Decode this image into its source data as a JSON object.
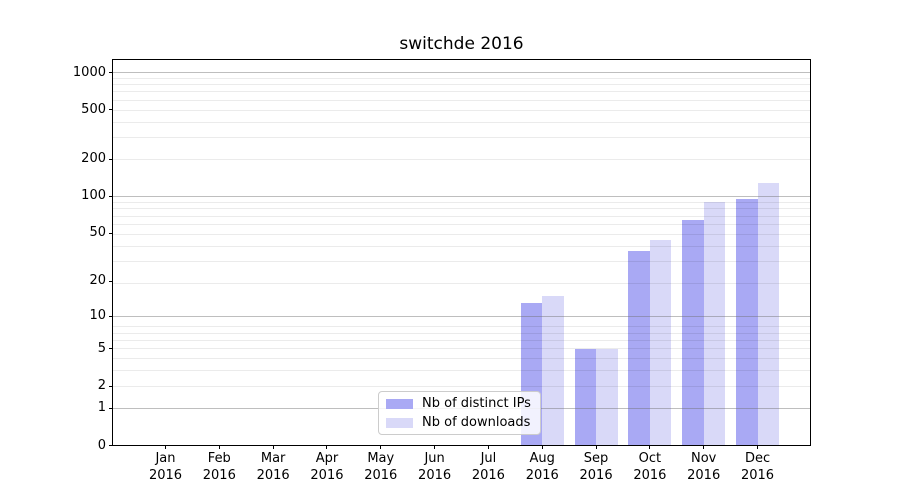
{
  "chart_data": {
    "type": "bar",
    "title": "switchde 2016",
    "yscale": "log1p",
    "grid": true,
    "legend_position": "lower center",
    "x_tick_year": "2016",
    "months": [
      "Jan",
      "Feb",
      "Mar",
      "Apr",
      "May",
      "Jun",
      "Jul",
      "Aug",
      "Sep",
      "Oct",
      "Nov",
      "Dec"
    ],
    "categories": [
      "Jan 2016",
      "Feb 2016",
      "Mar 2016",
      "Apr 2016",
      "May 2016",
      "Jun 2016",
      "Jul 2016",
      "Aug 2016",
      "Sep 2016",
      "Oct 2016",
      "Nov 2016",
      "Dec 2016"
    ],
    "yticks": [
      0,
      1,
      2,
      5,
      10,
      20,
      50,
      100,
      200,
      500,
      1000
    ],
    "ylim": [
      0,
      1300
    ],
    "series": [
      {
        "name": "Nb of distinct IPs",
        "color": "#a9a9f4",
        "values": [
          0,
          0,
          0,
          0,
          0,
          0,
          0,
          13,
          5,
          36,
          64,
          95
        ]
      },
      {
        "name": "Nb of downloads",
        "color": "#d9d9f8",
        "values": [
          0,
          0,
          0,
          0,
          0,
          0,
          0,
          15,
          5,
          44,
          90,
          128
        ]
      }
    ],
    "colors": {
      "axis": "#000000",
      "grid_major": "#b0b0b0",
      "grid_minor": "#ebebeb",
      "background": "#ffffff"
    }
  }
}
